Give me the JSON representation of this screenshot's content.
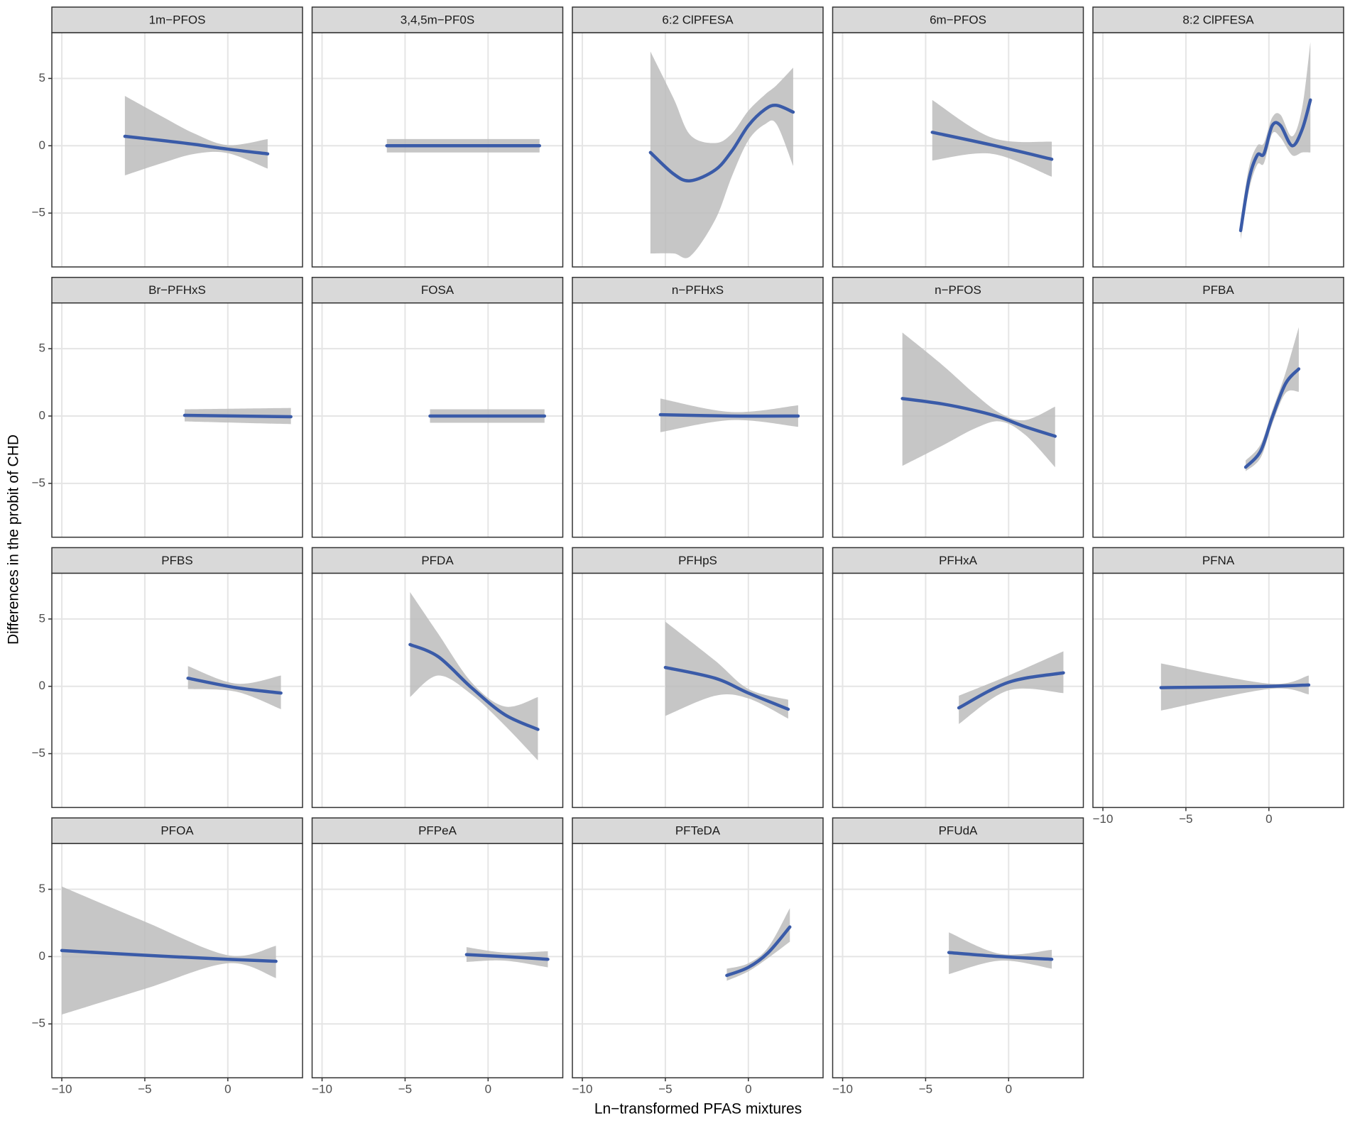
{
  "chart_data": {
    "type": "facet-smooth",
    "x_label": "Ln−transformed PFAS mixtures",
    "y_label": "Differences in the probit of CHD",
    "xlim": [
      -10.6,
      4.5
    ],
    "ylim": [
      -9.0,
      8.4
    ],
    "xticks": [
      {
        "value": -10,
        "label": "−10"
      },
      {
        "value": -5,
        "label": "−5"
      },
      0
    ],
    "yticks": [
      {
        "value": -5,
        "label": "−5"
      },
      0,
      5
    ],
    "grid": true,
    "line_color": "#3a5ba8",
    "ribbon_color": "#bcbcbc",
    "panels": [
      {
        "title": "1m−PFOS",
        "x": [
          -6.2,
          -4,
          -2,
          0,
          2.4
        ],
        "values": [
          0.7,
          0.4,
          0.1,
          -0.25,
          -0.6
        ],
        "lower": [
          -2.2,
          -1.3,
          -0.6,
          -0.55,
          -1.7
        ],
        "upper": [
          3.7,
          2.2,
          0.9,
          0.05,
          0.5
        ]
      },
      {
        "title": "3,4,5m−PF0S",
        "x": [
          -6.1,
          3.1
        ],
        "values": [
          0,
          0
        ],
        "lower": [
          -0.5,
          -0.5
        ],
        "upper": [
          0.5,
          0.5
        ]
      },
      {
        "title": "6:2 ClPFESA",
        "x": [
          -5.9,
          -4.5,
          -3.5,
          -2,
          -1,
          0,
          1,
          1.7,
          2.7
        ],
        "values": [
          -0.5,
          -2.1,
          -2.6,
          -1.8,
          -0.4,
          1.5,
          2.7,
          3.0,
          2.5
        ],
        "lower": [
          -8,
          -8,
          -8.2,
          -5.5,
          -2.3,
          0.4,
          1.6,
          1.6,
          -1.5
        ],
        "upper": [
          7,
          3.5,
          0.8,
          0.2,
          0.9,
          2.6,
          3.8,
          4.5,
          5.8
        ]
      },
      {
        "title": "6m−PFOS",
        "x": [
          -4.6,
          -1,
          2.6
        ],
        "values": [
          1.0,
          0.05,
          -1.0
        ],
        "lower": [
          -1.1,
          -0.6,
          -2.3
        ],
        "upper": [
          3.4,
          0.6,
          0.3
        ]
      },
      {
        "title": "8:2 ClPFESA",
        "x": [
          -1.7,
          -1.2,
          -0.7,
          -0.3,
          0.2,
          0.7,
          1.4,
          2.0,
          2.5
        ],
        "values": [
          -6.3,
          -2.5,
          -0.7,
          -0.6,
          1.5,
          1.5,
          0,
          1.2,
          3.4
        ],
        "lower": [
          -7,
          -3.3,
          -1.4,
          -1.3,
          0.9,
          0.6,
          -0.7,
          -0.5,
          -0.5
        ],
        "upper": [
          -5.5,
          -1.6,
          0,
          0.2,
          2.1,
          2.3,
          0.7,
          2.8,
          7.7
        ]
      },
      {
        "title": "Br−PFHxS",
        "x": [
          -2.6,
          3.8
        ],
        "values": [
          0.05,
          -0.05
        ],
        "lower": [
          -0.4,
          -0.6
        ],
        "upper": [
          0.5,
          0.6
        ]
      },
      {
        "title": "FOSA",
        "x": [
          -3.5,
          3.4
        ],
        "values": [
          0,
          0
        ],
        "lower": [
          -0.5,
          -0.5
        ],
        "upper": [
          0.5,
          0.5
        ]
      },
      {
        "title": "n−PFHxS",
        "x": [
          -5.3,
          -1,
          3
        ],
        "values": [
          0.1,
          0,
          0
        ],
        "lower": [
          -1.2,
          -0.3,
          -0.8
        ],
        "upper": [
          1.3,
          0.3,
          0.8
        ]
      },
      {
        "title": "n−PFOS",
        "x": [
          -6.4,
          -4,
          -2,
          -0.5,
          1,
          2.8
        ],
        "values": [
          1.3,
          0.9,
          0.4,
          -0.1,
          -0.8,
          -1.5
        ],
        "lower": [
          -3.7,
          -2.2,
          -0.9,
          -0.4,
          -1.4,
          -3.8
        ],
        "upper": [
          6.2,
          3.8,
          1.6,
          0.2,
          -0.3,
          0.7
        ]
      },
      {
        "title": "PFBA",
        "x": [
          -1.4,
          -0.5,
          0.2,
          1.0,
          1.8
        ],
        "values": [
          -3.8,
          -2.6,
          -0.1,
          2.4,
          3.5
        ],
        "lower": [
          -4.1,
          -3.1,
          -0.6,
          1.7,
          1.8
        ],
        "upper": [
          -3.3,
          -2.1,
          0.4,
          3.2,
          6.6
        ]
      },
      {
        "title": "PFBS",
        "x": [
          -2.4,
          0.5,
          3.2
        ],
        "values": [
          0.6,
          -0.1,
          -0.5
        ],
        "lower": [
          -0.2,
          -0.4,
          -1.7
        ],
        "upper": [
          1.5,
          0.2,
          0.8
        ]
      },
      {
        "title": "PFDA",
        "x": [
          -4.7,
          -3,
          -1,
          1,
          3
        ],
        "values": [
          3.1,
          2.2,
          -0.1,
          -2.1,
          -3.2
        ],
        "lower": [
          -0.8,
          0.8,
          -0.6,
          -2.9,
          -5.5
        ],
        "upper": [
          7.0,
          3.9,
          0.3,
          -1.5,
          -0.8
        ]
      },
      {
        "title": "PFHpS",
        "x": [
          -5,
          -2,
          0,
          2.4
        ],
        "values": [
          1.4,
          0.6,
          -0.5,
          -1.7
        ],
        "lower": [
          -2.2,
          -0.7,
          -0.9,
          -2.4
        ],
        "upper": [
          4.8,
          1.9,
          -0.2,
          -1.0
        ]
      },
      {
        "title": "PFHxA",
        "x": [
          -3,
          0,
          3.3
        ],
        "values": [
          -1.6,
          0.3,
          1.0
        ],
        "lower": [
          -2.8,
          -0.3,
          -0.5
        ],
        "upper": [
          -0.7,
          0.8,
          2.6
        ]
      },
      {
        "title": "PFNA",
        "x": [
          -6.5,
          0,
          2.4
        ],
        "values": [
          -0.1,
          0,
          0.1
        ],
        "lower": [
          -1.8,
          -0.2,
          -0.6
        ],
        "upper": [
          1.7,
          0.2,
          0.8
        ]
      },
      {
        "title": "PFOA",
        "x": [
          -10,
          -5,
          0,
          2.9
        ],
        "values": [
          0.45,
          0.1,
          -0.2,
          -0.35
        ],
        "lower": [
          -4.3,
          -2.4,
          -0.5,
          -1.6
        ],
        "upper": [
          5.2,
          2.6,
          0.1,
          0.8
        ]
      },
      {
        "title": "PFPeA",
        "x": [
          -1.3,
          1,
          3.6
        ],
        "values": [
          0.15,
          0,
          -0.2
        ],
        "lower": [
          -0.4,
          -0.3,
          -0.8
        ],
        "upper": [
          0.7,
          0.3,
          0.4
        ]
      },
      {
        "title": "PFTeDA",
        "x": [
          -1.3,
          0,
          1.2,
          2.5
        ],
        "values": [
          -1.4,
          -0.8,
          0.3,
          2.2
        ],
        "lower": [
          -1.8,
          -1.1,
          -0.1,
          1.1
        ],
        "upper": [
          -0.9,
          -0.5,
          0.7,
          3.6
        ]
      },
      {
        "title": "PFUdA",
        "x": [
          -3.6,
          -0.5,
          2.6
        ],
        "values": [
          0.3,
          0,
          -0.2
        ],
        "lower": [
          -1.3,
          -0.3,
          -0.9
        ],
        "upper": [
          1.8,
          0.2,
          0.5
        ]
      }
    ]
  }
}
